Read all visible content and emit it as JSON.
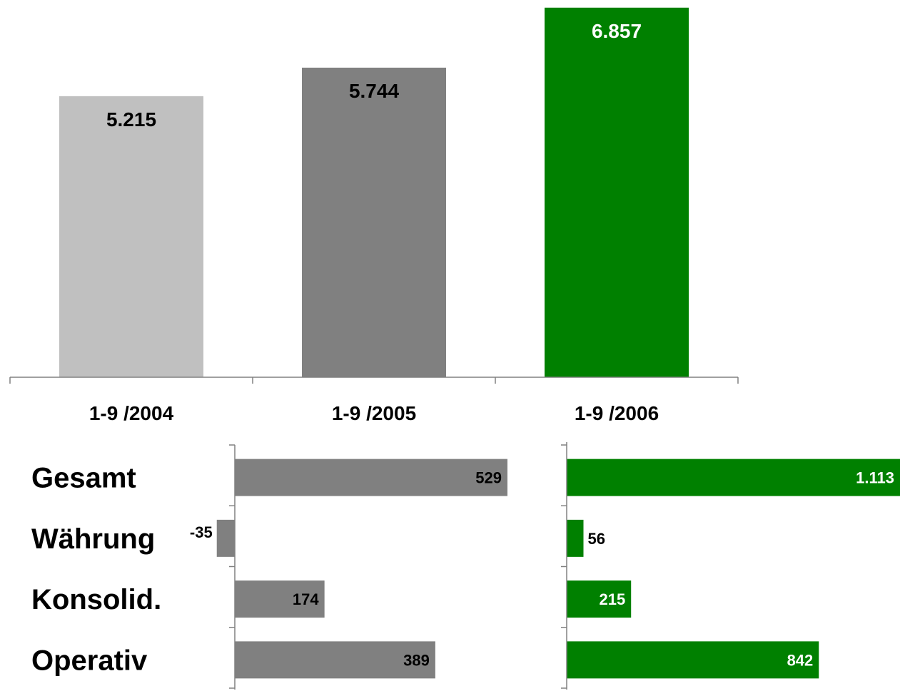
{
  "colors": {
    "light_gray": "#c0c0c0",
    "mid_gray": "#808080",
    "green": "#008000",
    "axis": "#808080",
    "label_dark": "#000000",
    "label_light": "#ffffff"
  },
  "chart_data": [
    {
      "type": "bar",
      "orientation": "vertical",
      "title": "",
      "xlabel": "",
      "ylabel": "",
      "ylim": [
        0,
        6920
      ],
      "categories": [
        "1-9 /2004",
        "1-9 /2005",
        "1-9 /2006"
      ],
      "values": [
        5215,
        5744,
        6857
      ],
      "value_labels": [
        "5.215",
        "5.744",
        "6.857"
      ],
      "bar_colors": [
        "#c0c0c0",
        "#808080",
        "#008000"
      ],
      "label_colors": [
        "#000000",
        "#000000",
        "#ffffff"
      ],
      "grid": false
    },
    {
      "type": "bar",
      "orientation": "horizontal",
      "title": "",
      "categories": [
        "Gesamt",
        "Währung",
        "Konsolid.",
        "Operativ"
      ],
      "values": [
        529,
        -35,
        174,
        389
      ],
      "value_labels": [
        "529",
        "-35",
        "174",
        "389"
      ],
      "label_position": [
        "inside",
        "outside",
        "inside",
        "inside"
      ],
      "label_colors": [
        "#000000",
        "#000000",
        "#000000",
        "#000000"
      ],
      "bar_color": "#808080",
      "xlim": [
        -35,
        529
      ],
      "grid": false
    },
    {
      "type": "bar",
      "orientation": "horizontal",
      "title": "",
      "categories": [
        "Gesamt",
        "Währung",
        "Konsolid.",
        "Operativ"
      ],
      "values": [
        1113,
        56,
        215,
        842
      ],
      "value_labels": [
        "1.113",
        "56",
        "215",
        "842"
      ],
      "label_position": [
        "inside",
        "outside",
        "inside",
        "inside"
      ],
      "label_colors": [
        "#ffffff",
        "#000000",
        "#ffffff",
        "#ffffff"
      ],
      "bar_color": "#008000",
      "xlim": [
        0,
        1113
      ],
      "grid": false
    }
  ]
}
